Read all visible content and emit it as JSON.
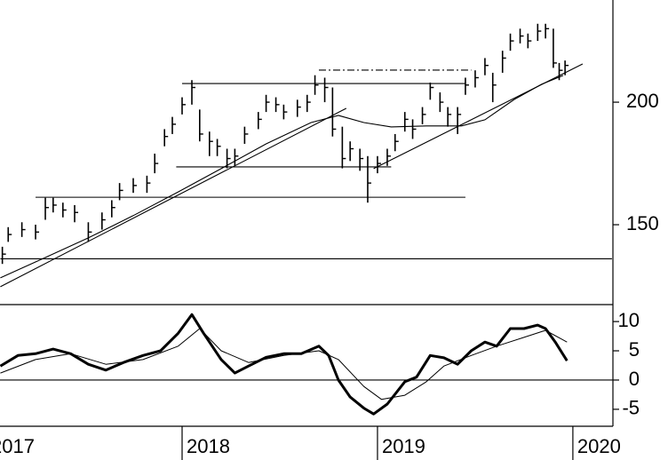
{
  "chart_data": [
    {
      "type": "ohlc",
      "x": [
        2017.08,
        2017.11,
        2017.18,
        2017.25,
        2017.3,
        2017.34,
        2017.39,
        2017.45,
        2017.52,
        2017.59,
        2017.64,
        2017.68,
        2017.75,
        2017.82,
        2017.86,
        2017.91,
        2017.95,
        2018.0,
        2018.05,
        2018.09,
        2018.14,
        2018.18,
        2018.23,
        2018.27,
        2018.32,
        2018.39,
        2018.43,
        2018.48,
        2018.52,
        2018.59,
        2018.64,
        2018.68,
        2018.73,
        2018.77,
        2018.82,
        2018.86,
        2018.91,
        2018.95,
        2019.0,
        2019.05,
        2019.09,
        2019.14,
        2019.18,
        2019.23,
        2019.27,
        2019.32,
        2019.36,
        2019.41,
        2019.45,
        2019.5,
        2019.55,
        2019.59,
        2019.64,
        2019.68,
        2019.73,
        2019.77,
        2019.82,
        2019.86,
        2019.9,
        2019.93,
        2019.96
      ],
      "high": [
        141,
        149,
        151,
        150,
        161,
        161,
        159,
        158,
        151,
        155,
        160,
        167,
        169,
        170,
        179,
        189,
        194,
        202,
        209,
        197,
        188,
        185,
        181,
        181,
        190,
        196,
        203,
        202,
        199,
        201,
        203,
        211,
        210,
        206,
        190,
        184,
        181,
        178,
        178,
        181,
        187,
        196,
        193,
        198,
        208,
        204,
        198,
        198,
        210,
        213,
        218,
        212,
        221,
        228,
        230,
        228,
        232,
        232,
        230,
        216,
        217
      ],
      "low": [
        134,
        143,
        145,
        144,
        152,
        155,
        153,
        151,
        143,
        148,
        153,
        160,
        163,
        163,
        171,
        182,
        187,
        195,
        199,
        184,
        178,
        178,
        173,
        174,
        183,
        189,
        196,
        196,
        193,
        194,
        196,
        203,
        200,
        186,
        173,
        176,
        172,
        159,
        171,
        174,
        180,
        188,
        185,
        191,
        201,
        196,
        190,
        187,
        203,
        206,
        211,
        200,
        212,
        221,
        224,
        222,
        225,
        226,
        214,
        209,
        211
      ],
      "close": [
        138,
        146,
        148,
        147,
        157,
        158,
        156,
        155,
        147,
        152,
        157,
        164,
        166,
        167,
        175,
        186,
        191,
        199,
        206,
        187,
        184,
        182,
        177,
        178,
        187,
        193,
        200,
        199,
        196,
        198,
        200,
        207,
        206,
        189,
        177,
        181,
        177,
        167,
        175,
        178,
        184,
        193,
        189,
        195,
        206,
        200,
        195,
        195,
        207,
        210,
        215,
        207,
        218,
        225,
        227,
        225,
        229,
        230,
        216,
        213,
        215
      ],
      "color": "#000000",
      "moving_average": {
        "x": [
          2017.07,
          2017.3,
          2017.52,
          2017.75,
          2017.98,
          2018.2,
          2018.43,
          2018.66,
          2018.8,
          2018.93,
          2019.07,
          2019.25,
          2019.43,
          2019.55,
          2019.7,
          2019.84,
          2019.95
        ],
        "values": [
          128.3,
          136.6,
          144.6,
          153.7,
          163.4,
          172.9,
          183.0,
          191.7,
          194.6,
          191.7,
          189.9,
          190.3,
          190.3,
          192.8,
          201.1,
          207.3,
          210.9
        ]
      },
      "trendlines": [
        {
          "x": [
            2017.07,
            2018.84
          ],
          "y": [
            124.7,
            197.5
          ]
        },
        {
          "x": [
            2018.98,
            2020.05
          ],
          "y": [
            172.9,
            215.6
          ]
        }
      ],
      "levels": [
        {
          "value": 136.1,
          "from": 2017.07,
          "to": 2020.2,
          "style": "solid"
        },
        {
          "value": 207.6,
          "from": 2018.0,
          "to": 2019.45,
          "style": "solid"
        },
        {
          "value": 173.6,
          "from": 2017.97,
          "to": 2019.07,
          "style": "solid"
        },
        {
          "value": 161.2,
          "from": 2017.25,
          "to": 2019.45,
          "style": "solid"
        },
        {
          "value": 213.1,
          "from": 2018.7,
          "to": 2019.48,
          "style": "dashdot"
        }
      ],
      "xlim": [
        2017.068,
        2020.205
      ],
      "ylim": [
        117.4,
        241.7
      ],
      "yticks": [
        150,
        200
      ]
    },
    {
      "type": "line",
      "series": [
        {
          "color": "#000000",
          "width": 3,
          "x": [
            2017.07,
            2017.16,
            2017.25,
            2017.34,
            2017.43,
            2017.52,
            2017.61,
            2017.7,
            2017.8,
            2017.89,
            2017.98,
            2018.05,
            2018.11,
            2018.2,
            2018.27,
            2018.34,
            2018.43,
            2018.52,
            2018.61,
            2018.7,
            2018.75,
            2018.8,
            2018.86,
            2018.93,
            2018.98,
            2019.05,
            2019.14,
            2019.2,
            2019.27,
            2019.34,
            2019.41,
            2019.48,
            2019.55,
            2019.61,
            2019.68,
            2019.75,
            2019.82,
            2019.86,
            2019.91,
            2019.97
          ],
          "values": [
            2.4,
            4.2,
            4.5,
            5.3,
            4.5,
            2.7,
            1.7,
            3.0,
            4.2,
            5.0,
            8.0,
            11.2,
            8.0,
            3.5,
            1.2,
            2.4,
            3.9,
            4.5,
            4.5,
            5.8,
            4.2,
            0,
            -2.9,
            -4.8,
            -5.8,
            -4.1,
            -0.3,
            0.5,
            4.2,
            3.8,
            2.7,
            5.0,
            6.5,
            5.8,
            8.8,
            8.8,
            9.4,
            8.8,
            6.5,
            3.3
          ]
        },
        {
          "color": "#000000",
          "width": 1,
          "x": [
            2017.07,
            2017.25,
            2017.43,
            2017.61,
            2017.8,
            2017.98,
            2018.09,
            2018.2,
            2018.34,
            2018.52,
            2018.7,
            2018.8,
            2018.93,
            2019.02,
            2019.14,
            2019.25,
            2019.34,
            2019.48,
            2019.61,
            2019.75,
            2019.86,
            2019.97
          ],
          "values": [
            1.2,
            3.5,
            4.5,
            2.7,
            3.5,
            5.8,
            8.8,
            5.0,
            3.0,
            4.2,
            5.0,
            3.5,
            -1.1,
            -3.3,
            -2.6,
            -0.3,
            2.4,
            4.2,
            5.8,
            7.3,
            8.5,
            6.5
          ]
        }
      ],
      "hlines": [
        0
      ],
      "xlim": [
        2017.068,
        2020.205
      ],
      "ylim": [
        -7.9,
        12.9
      ],
      "yticks": [
        10,
        5,
        0,
        -5
      ],
      "xticks": [
        2017,
        2018,
        2019,
        2020
      ]
    }
  ]
}
